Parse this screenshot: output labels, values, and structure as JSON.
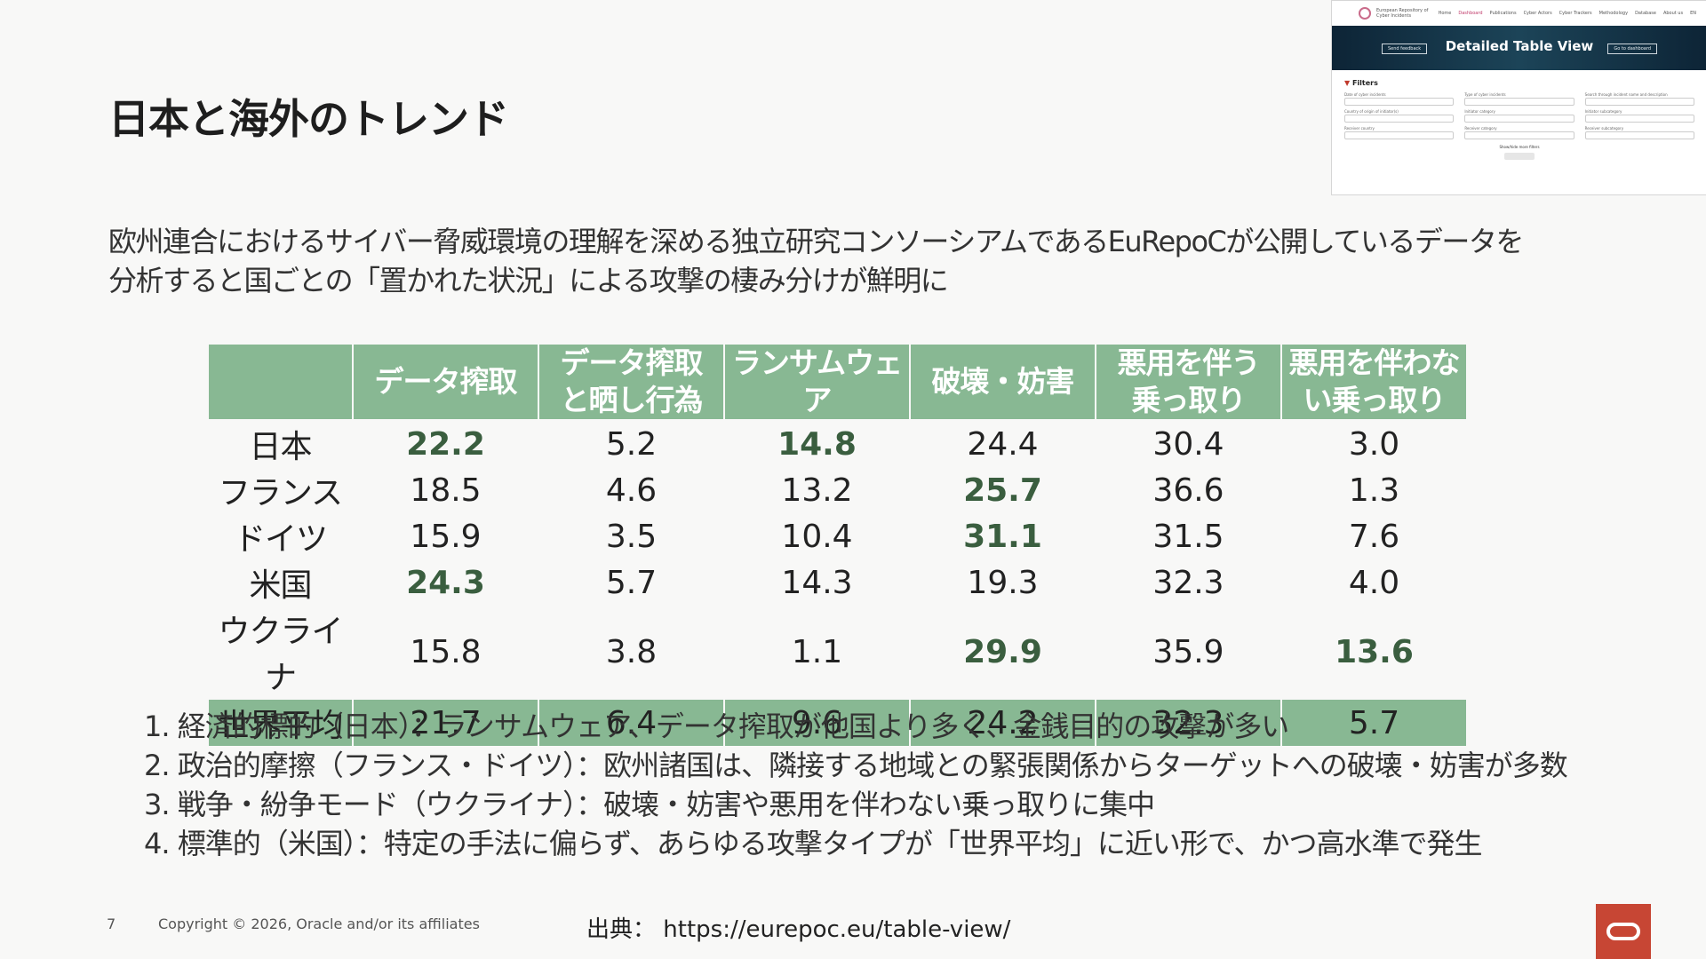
{
  "page": {
    "title": "日本と海外のトレンド",
    "subtitle_lines": [
      "欧州連合におけるサイバー脅威環境の理解を深める独立研究コンソーシアムであるEuRepoCが公開しているデータを",
      "分析すると国ごとの「置かれた状況」による攻撃の棲み分けが鮮明に"
    ]
  },
  "thumbnail": {
    "org_name": "European Repository of Cyber Incidents",
    "nav": [
      "Home",
      "Dashboard",
      "Publications",
      "Cyber Actors",
      "Cyber Trackers",
      "Methodology",
      "Database",
      "About us",
      "EN"
    ],
    "hero_title": "Detailed Table View",
    "send_feedback": "Send feedback",
    "go_to_dashboard": "Go to dashboard",
    "filters_label": "Filters",
    "filter_fields": [
      "Date of cyber incidents",
      "Type of cyber incidents",
      "Search through incident name and description",
      "Country of origin of initiator(s)",
      "Initiator category",
      "Initiator subcategory",
      "Receiver country",
      "Receiver category",
      "Receiver subcategory"
    ],
    "show_more": "Show/hide more filters",
    "reset": "Reset selection"
  },
  "table": {
    "headers": [
      "",
      "データ搾取",
      "データ搾取と晒し行為",
      "ランサムウェア",
      "破壊・妨害",
      "悪用を伴う乗っ取り",
      "悪用を伴わない乗っ取り"
    ],
    "header_lines": [
      [
        ""
      ],
      [
        "データ搾取"
      ],
      [
        "データ搾取",
        "と晒し行為"
      ],
      [
        "ランサムウェア"
      ],
      [
        "破壊・妨害"
      ],
      [
        "悪用を伴う",
        "乗っ取り"
      ],
      [
        "悪用を伴わな",
        "い乗っ取り"
      ]
    ],
    "rows": [
      {
        "label": "日本",
        "values": [
          "22.2",
          "5.2",
          "14.8",
          "24.4",
          "30.4",
          "3.0"
        ],
        "highlight": [
          true,
          false,
          true,
          false,
          false,
          false
        ]
      },
      {
        "label": "フランス",
        "values": [
          "18.5",
          "4.6",
          "13.2",
          "25.7",
          "36.6",
          "1.3"
        ],
        "highlight": [
          false,
          false,
          false,
          true,
          false,
          false
        ]
      },
      {
        "label": "ドイツ",
        "values": [
          "15.9",
          "3.5",
          "10.4",
          "31.1",
          "31.5",
          "7.6"
        ],
        "highlight": [
          false,
          false,
          false,
          true,
          false,
          false
        ]
      },
      {
        "label": "米国",
        "values": [
          "24.3",
          "5.7",
          "14.3",
          "19.3",
          "32.3",
          "4.0"
        ],
        "highlight": [
          true,
          false,
          false,
          false,
          false,
          false
        ]
      },
      {
        "label": "ウクライナ",
        "values": [
          "15.8",
          "3.8",
          "1.1",
          "29.9",
          "35.9",
          "13.6"
        ],
        "highlight": [
          false,
          false,
          false,
          true,
          false,
          true
        ]
      }
    ],
    "average": {
      "label": "世界平均",
      "values": [
        "21.7",
        "6.4",
        "9.6",
        "24.2",
        "32.3",
        "5.7"
      ]
    }
  },
  "notes": [
    "1. 経済的標的（日本）：ランサムウェア、データ搾取が他国より多く、金銭目的の攻撃が多い",
    "2. 政治的摩擦（フランス・ドイツ）：欧州諸国は、隣接する地域との緊張関係からターゲットへの破壊・妨害が多数",
    "3. 戦争・紛争モード（ウクライナ）：破壊・妨害や悪用を伴わない乗っ取りに集中",
    "4. 標準的（米国）：特定の手法に偏らず、あらゆる攻撃タイプが「世界平均」に近い形で、かつ高水準で発生"
  ],
  "footer": {
    "page_number": "7",
    "copyright": "Copyright © 2026, Oracle and/or its affiliates",
    "source_label": "出典：",
    "source_url": "https://eurepoc.eu/table-view/"
  },
  "colors": {
    "header_green": "#88b893",
    "highlight_text": "#3a5e3f",
    "oracle_red": "#c74634"
  },
  "icons": {
    "oracle_logo": "oracle-logo-icon",
    "eurepoc_logo": "eurepoc-logo-icon"
  }
}
